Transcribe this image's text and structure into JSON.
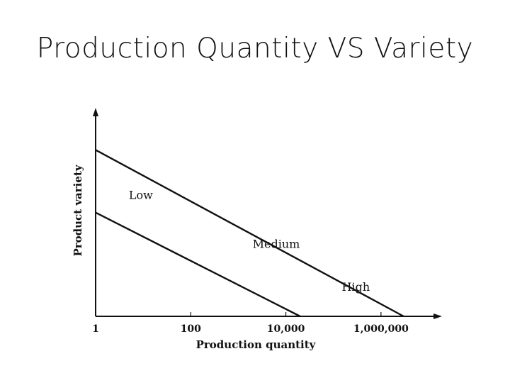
{
  "slide": {
    "title": "Production Quantity VS Variety"
  },
  "colors": {
    "ink": "#111111",
    "background": "#ffffff"
  },
  "chart_data": {
    "type": "line",
    "title": "",
    "xlabel": "Production quantity",
    "ylabel": "Product variety",
    "x_scale": "log",
    "xlim": [
      1,
      10000000
    ],
    "ylim": [
      0,
      10
    ],
    "x_ticks": [
      {
        "value": 1,
        "label": "1"
      },
      {
        "value": 100,
        "label": "100"
      },
      {
        "value": 10000,
        "label": "10,000"
      },
      {
        "value": 1000000,
        "label": "1,000,000"
      }
    ],
    "y_ticks_labeled": false,
    "grid": false,
    "axis_arrows": true,
    "lines": [
      {
        "x": [
          1,
          3000000
        ],
        "y": [
          8.5,
          0
        ]
      },
      {
        "x": [
          1,
          20000
        ],
        "y": [
          5.3,
          0
        ]
      }
    ],
    "region_labels": [
      {
        "text": "Low",
        "x": 5,
        "y": 6.0
      },
      {
        "text": "Medium",
        "x": 2000,
        "y": 3.5
      },
      {
        "text": "High",
        "x": 150000,
        "y": 1.3
      }
    ]
  }
}
